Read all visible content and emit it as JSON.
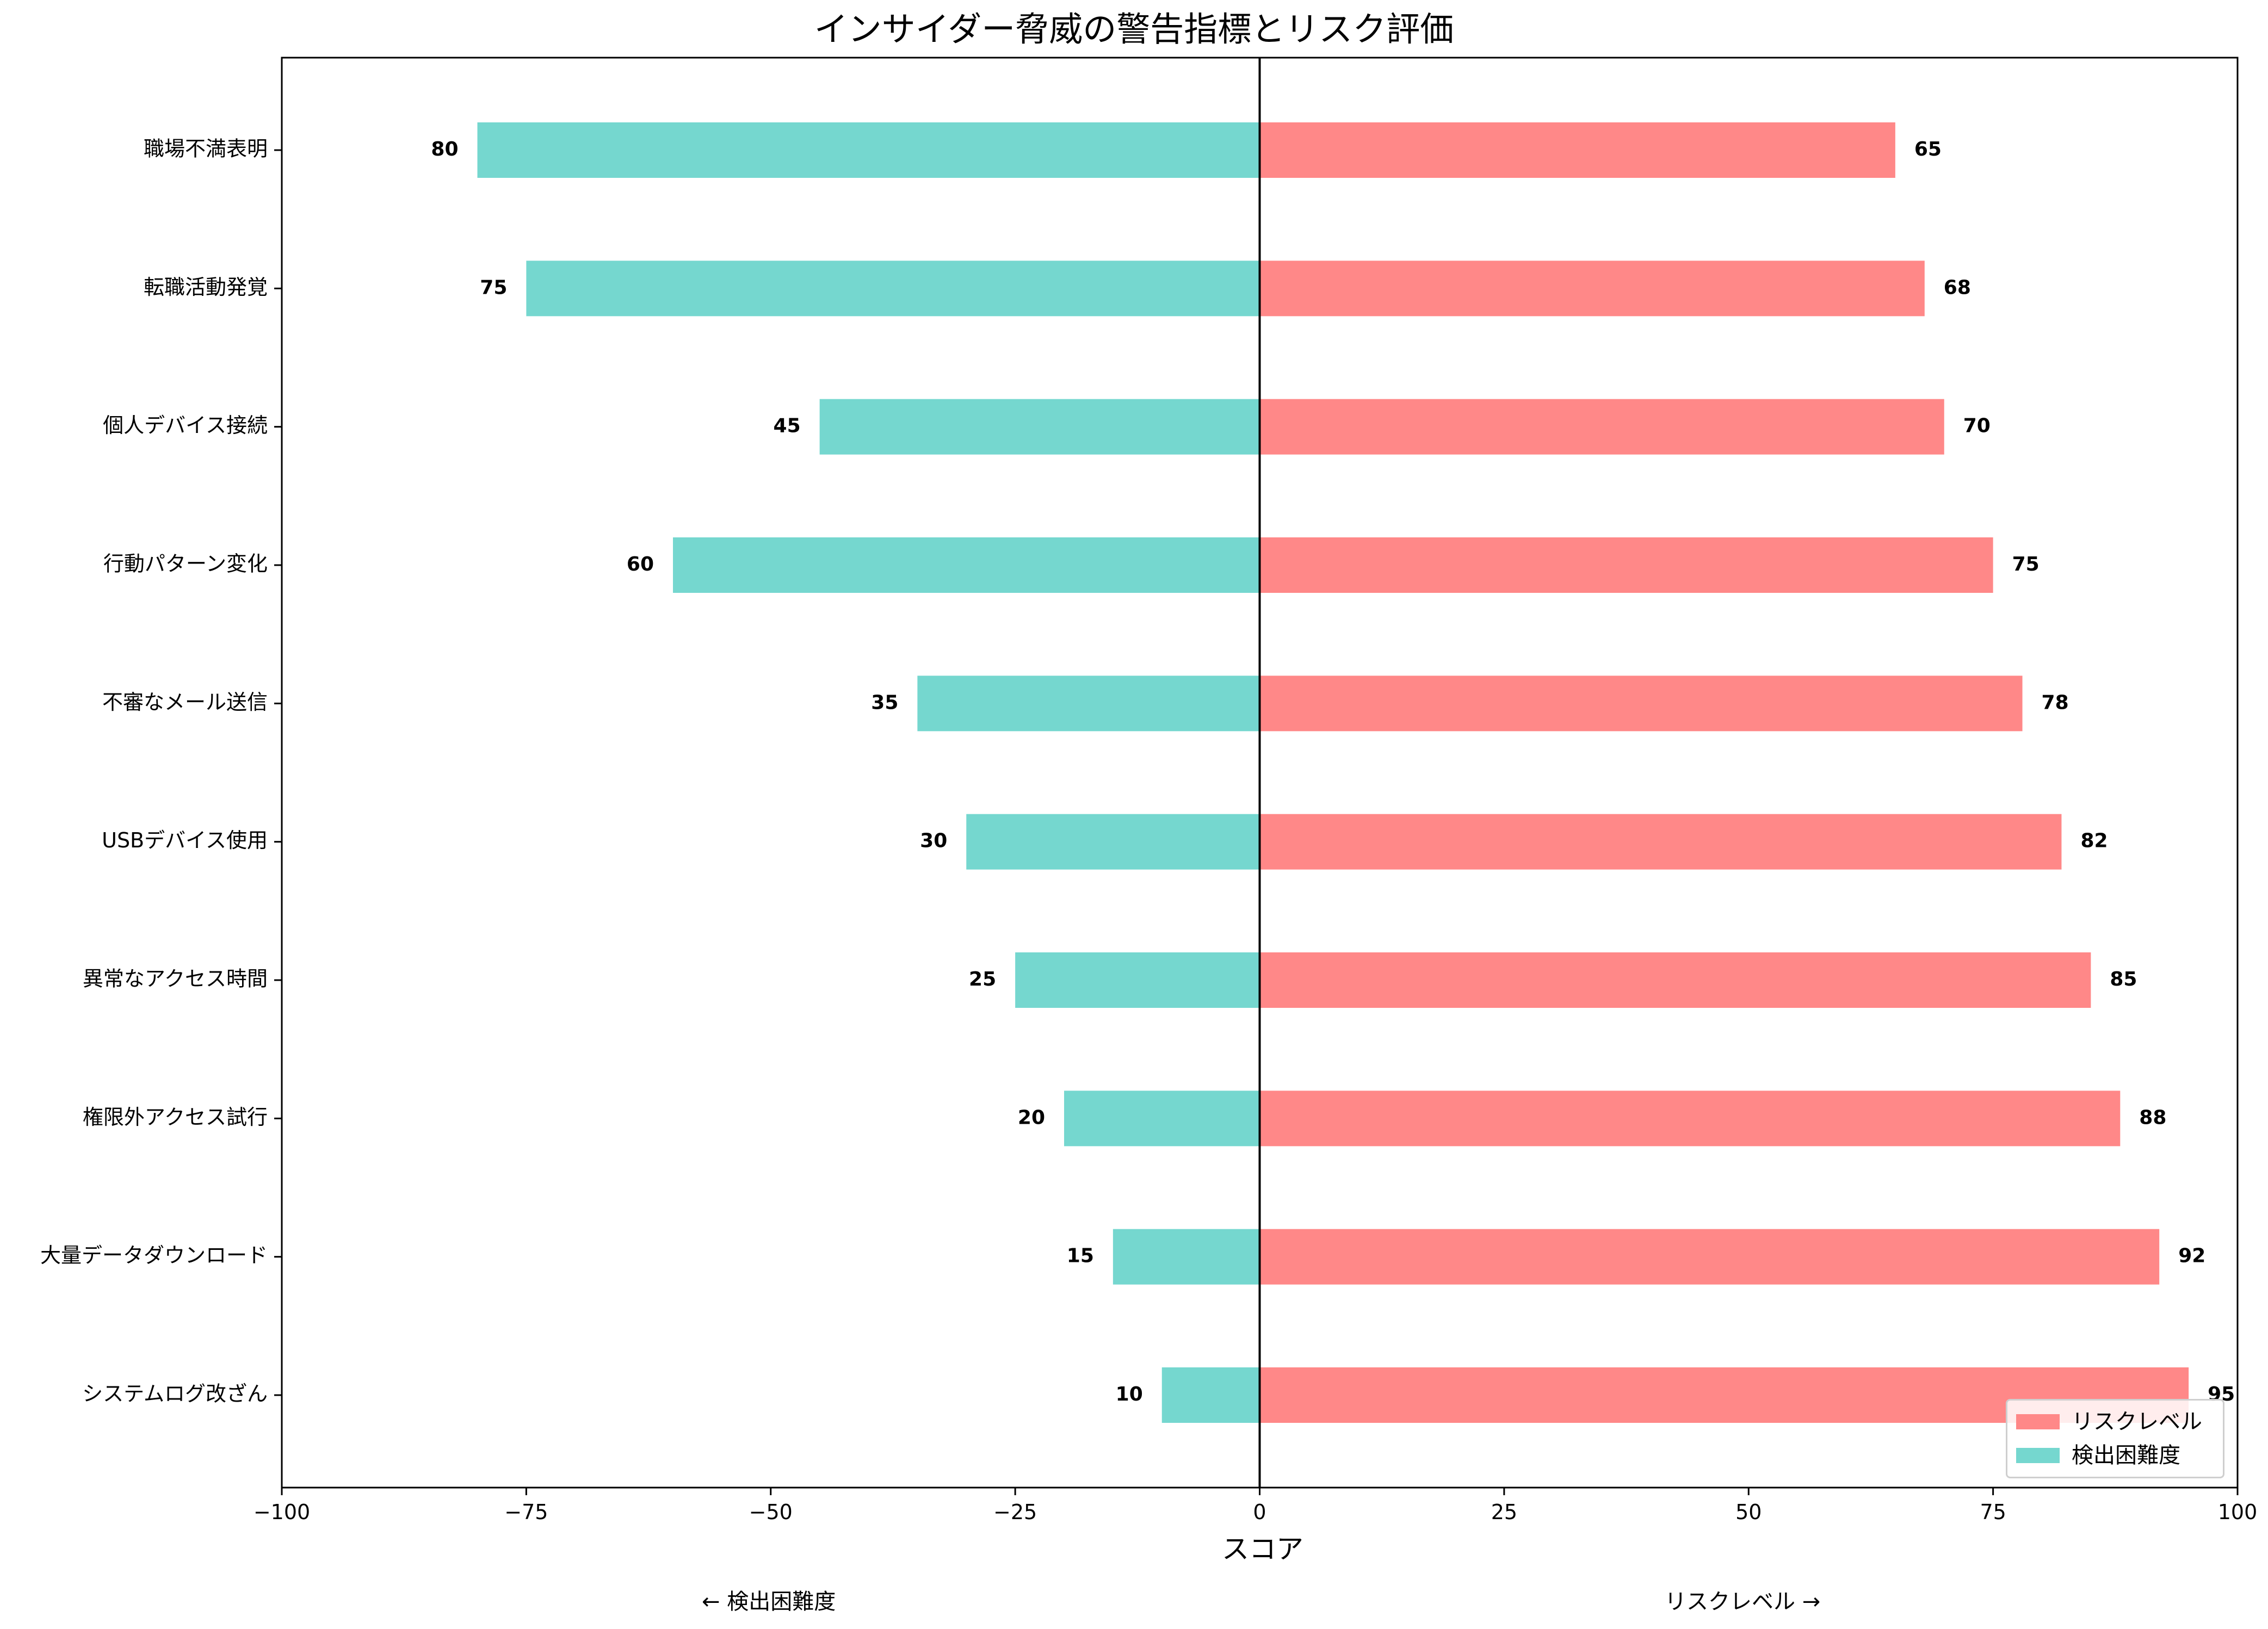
{
  "chart_data": {
    "type": "bar",
    "orientation": "horizontal-diverging",
    "title": "インサイダー脅威の警告指標とリスク評価",
    "xlabel": "スコア",
    "xlim": [
      -100,
      100
    ],
    "xticks": [
      -100,
      -75,
      -50,
      -25,
      0,
      25,
      50,
      75,
      100
    ],
    "xtick_labels": [
      "−100",
      "−75",
      "−50",
      "−25",
      "0",
      "25",
      "50",
      "75",
      "100"
    ],
    "categories": [
      "職場不満表明",
      "転職活動発覚",
      "個人デバイス接続",
      "行動パターン変化",
      "不審なメール送信",
      "USBデバイス使用",
      "異常なアクセス時間",
      "権限外アクセス試行",
      "大量データダウンロード",
      "システムログ改ざん"
    ],
    "series": [
      {
        "name": "リスクレベル",
        "color": "#FF8888",
        "values": [
          65,
          68,
          70,
          75,
          78,
          82,
          85,
          88,
          92,
          95
        ]
      },
      {
        "name": "検出困難度",
        "color": "#75D7CF",
        "values": [
          80,
          75,
          45,
          60,
          35,
          30,
          25,
          20,
          15,
          10
        ],
        "plotted_negative": true
      }
    ],
    "left_note": "← 検出困難度",
    "right_note": "リスクレベル →",
    "legend_position": "lower right",
    "grid": false
  }
}
